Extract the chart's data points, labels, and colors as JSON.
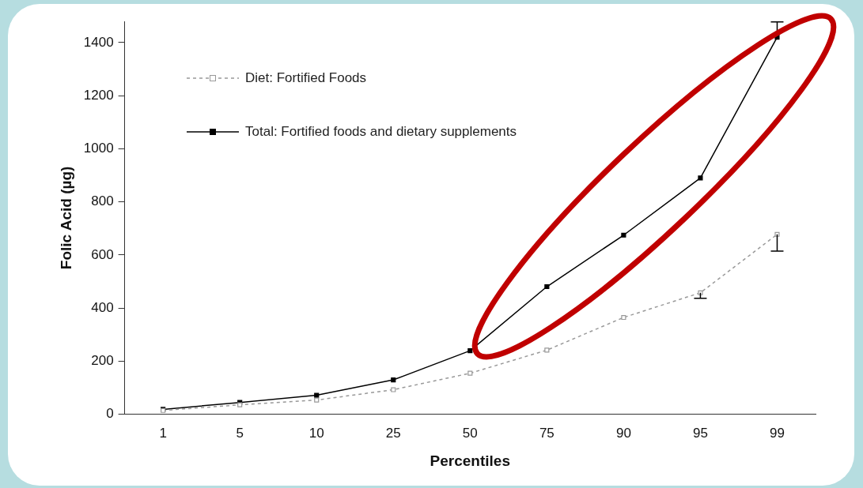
{
  "chart_data": {
    "type": "line",
    "xlabel": "Percentiles",
    "ylabel": "Folic Acid (µg)",
    "categories": [
      "1",
      "5",
      "10",
      "25",
      "50",
      "75",
      "90",
      "95",
      "99"
    ],
    "ylim": [
      0,
      1480
    ],
    "yticks": [
      0,
      200,
      400,
      600,
      800,
      1000,
      1200,
      1400
    ],
    "grid": false,
    "legend": "top left",
    "marker": "square",
    "series": [
      {
        "name": "Diet: Fortified Foods",
        "color": "#999999",
        "line_style": "dashed",
        "values": [
          15,
          36,
          54,
          93,
          155,
          242,
          365,
          458,
          678
        ],
        "errors": [
          null,
          null,
          null,
          null,
          null,
          null,
          null,
          [
            437,
            458
          ],
          [
            615,
            678
          ]
        ]
      },
      {
        "name": "Total: Fortified foods and dietary supplements",
        "color": "#000000",
        "line_style": "solid",
        "values": [
          19,
          45,
          72,
          130,
          240,
          481,
          675,
          890,
          1420
        ],
        "errors": [
          null,
          null,
          null,
          null,
          null,
          null,
          null,
          null,
          [
            1420,
            1478
          ]
        ]
      }
    ]
  }
}
